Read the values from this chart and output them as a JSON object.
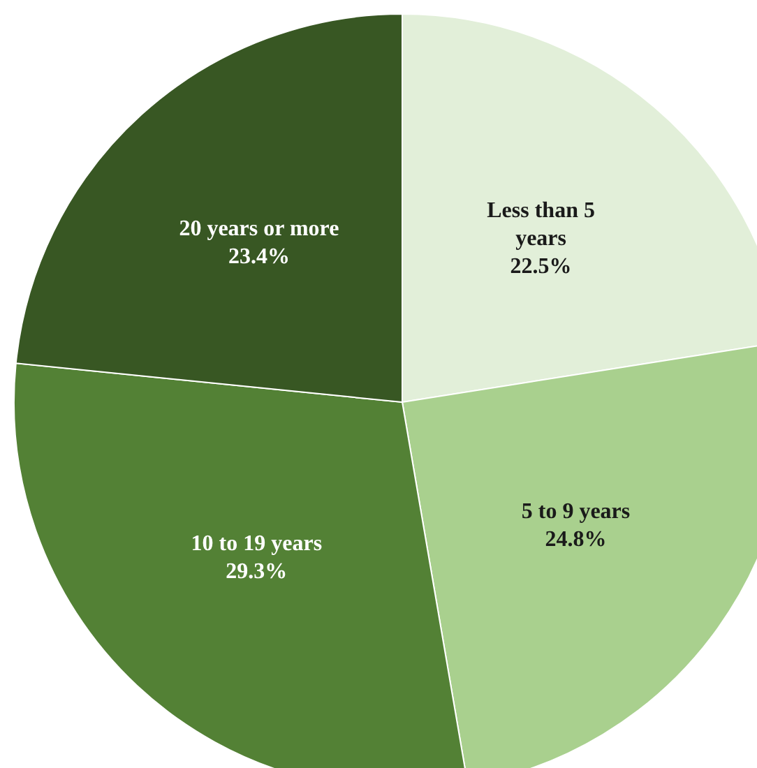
{
  "chart_data": {
    "type": "pie",
    "categories": [
      "Less than 5 years",
      "5 to 9 years",
      "10 to 19 years",
      "20 years or more"
    ],
    "values": [
      22.5,
      24.8,
      29.3,
      23.4
    ],
    "colors": [
      "#e2efd9",
      "#a9d08e",
      "#538135",
      "#385723"
    ],
    "value_labels": [
      "22.5%",
      "24.8%",
      "29.3%",
      "23.4%"
    ]
  }
}
